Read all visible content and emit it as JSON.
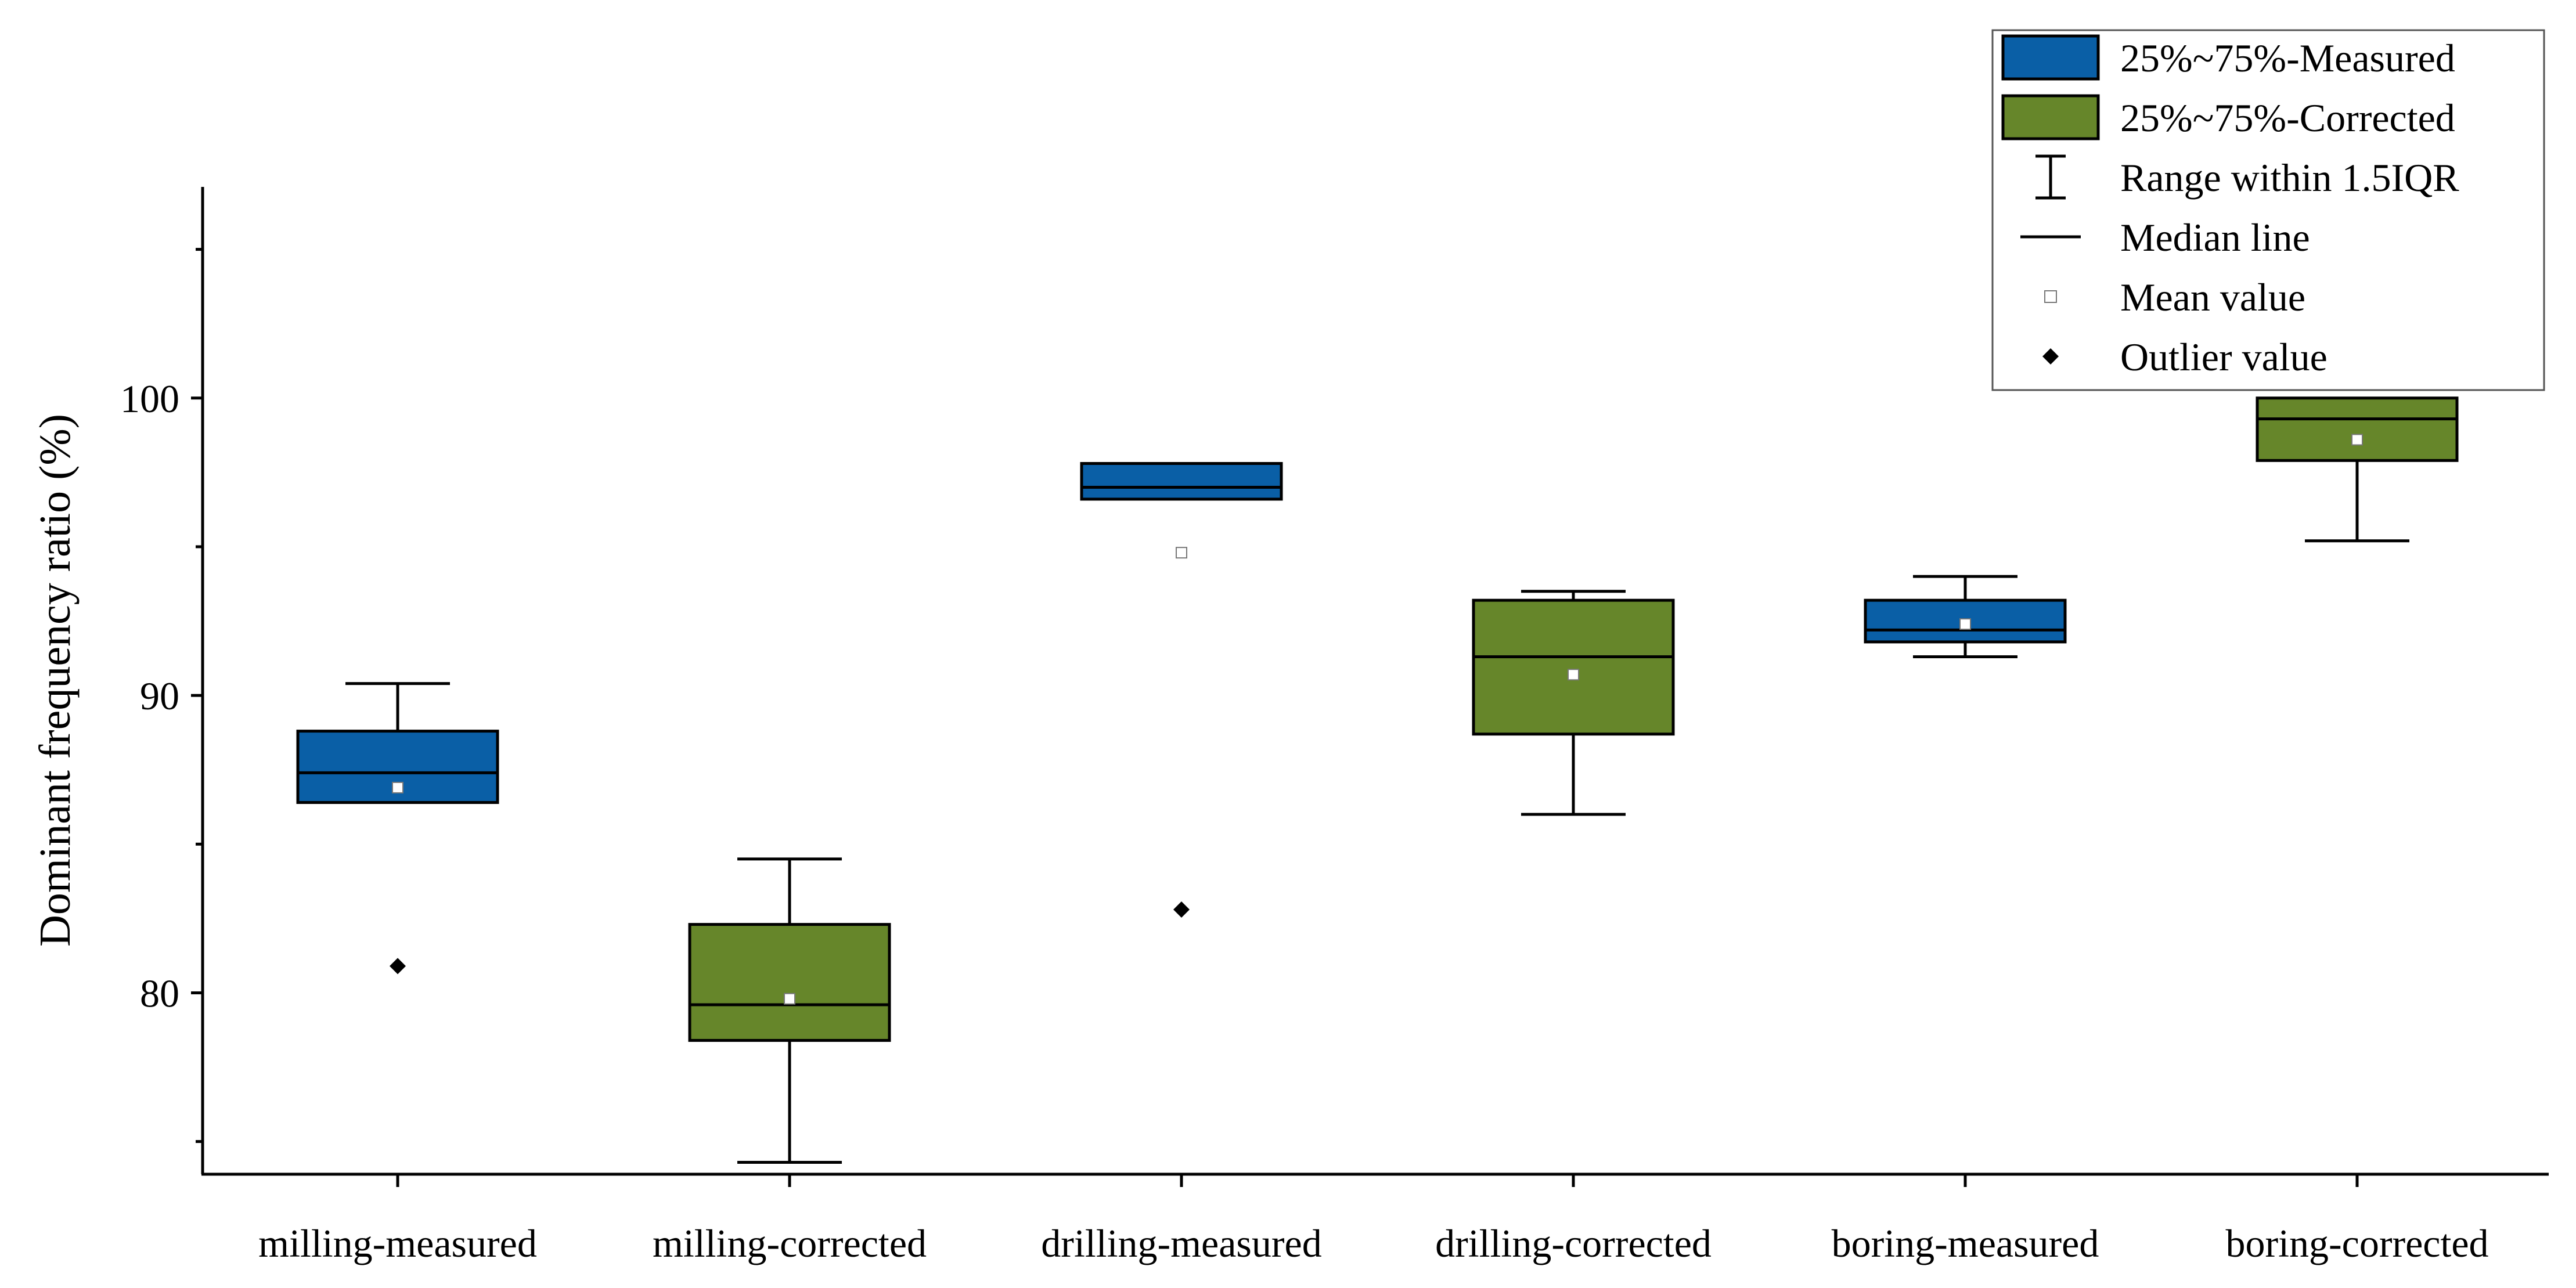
{
  "chart_data": {
    "type": "box",
    "title": "",
    "xlabel": "",
    "ylabel": "Dominant frequency ratio (%)",
    "ylim": [
      73.9,
      107.1
    ],
    "yticks": [
      80,
      90,
      100
    ],
    "yminor_ticks": [
      75,
      85,
      95,
      105
    ],
    "categories": [
      "milling-measured",
      "milling-corrected",
      "drilling-measured",
      "drilling-corrected",
      "boring-measured",
      "boring-corrected"
    ],
    "boxes": [
      {
        "category": "milling-measured",
        "group": "Measured",
        "q1": 86.4,
        "median": 87.4,
        "q3": 88.8,
        "whisker_low": 86.4,
        "whisker_high": 90.4,
        "mean": 86.9,
        "outliers": [
          80.9
        ]
      },
      {
        "category": "milling-corrected",
        "group": "Corrected",
        "q1": 78.4,
        "median": 79.6,
        "q3": 82.3,
        "whisker_low": 74.3,
        "whisker_high": 84.5,
        "mean": 79.8,
        "outliers": []
      },
      {
        "category": "drilling-measured",
        "group": "Measured",
        "q1": 96.6,
        "median": 97.0,
        "q3": 97.8,
        "whisker_low": 96.6,
        "whisker_high": 97.8,
        "mean": 94.8,
        "outliers": [
          82.8
        ]
      },
      {
        "category": "drilling-corrected",
        "group": "Corrected",
        "q1": 88.7,
        "median": 91.3,
        "q3": 93.2,
        "whisker_low": 86.0,
        "whisker_high": 93.5,
        "mean": 90.7,
        "outliers": []
      },
      {
        "category": "boring-measured",
        "group": "Measured",
        "q1": 91.8,
        "median": 92.2,
        "q3": 93.2,
        "whisker_low": 91.3,
        "whisker_high": 94.0,
        "mean": 92.4,
        "outliers": []
      },
      {
        "category": "boring-corrected",
        "group": "Corrected",
        "q1": 97.9,
        "median": 99.3,
        "q3": 100.0,
        "whisker_low": 95.2,
        "whisker_high": 100.0,
        "mean": 98.6,
        "outliers": []
      }
    ],
    "colors": {
      "Measured": "#0a5fa6",
      "Corrected": "#66862a"
    },
    "legend": {
      "placement": "top-right",
      "entries": [
        {
          "key": "measured-box",
          "label": "25%~75%-Measured"
        },
        {
          "key": "corrected-box",
          "label": "25%~75%-Corrected"
        },
        {
          "key": "range",
          "label": "Range within 1.5IQR"
        },
        {
          "key": "median",
          "label": "Median line"
        },
        {
          "key": "mean",
          "label": "Mean value"
        },
        {
          "key": "outlier",
          "label": "Outlier value"
        }
      ]
    }
  }
}
